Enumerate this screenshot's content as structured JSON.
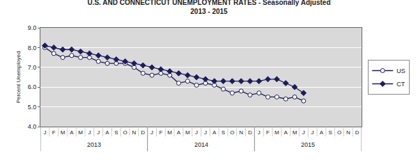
{
  "chart_data": {
    "type": "line",
    "title": "U.S. AND CONNECTICUT UNEMPLOYMENT RATES - Seasonally Adjusted",
    "subtitle": "2013 - 2015",
    "y_label": "Percent Unemployed",
    "categories": [
      "J",
      "F",
      "M",
      "A",
      "M",
      "J",
      "J",
      "A",
      "S",
      "O",
      "N",
      "D",
      "J",
      "F",
      "M",
      "A",
      "M",
      "J",
      "J",
      "A",
      "S",
      "O",
      "N",
      "D",
      "J",
      "F",
      "M",
      "A",
      "M",
      "J",
      "J",
      "A",
      "S",
      "O",
      "N",
      "D"
    ],
    "years": [
      "2013",
      "2014",
      "2015"
    ],
    "series": [
      {
        "name": "US",
        "color": "#1c1c5c",
        "marker": "circle-open",
        "values": [
          8.0,
          7.7,
          7.5,
          7.6,
          7.5,
          7.5,
          7.3,
          7.2,
          7.2,
          7.2,
          7.0,
          6.7,
          6.6,
          6.7,
          6.6,
          6.2,
          6.3,
          6.1,
          6.2,
          6.1,
          5.9,
          5.7,
          5.8,
          5.6,
          5.7,
          5.5,
          5.5,
          5.4,
          5.5,
          5.3,
          null,
          null,
          null,
          null,
          null,
          null
        ]
      },
      {
        "name": "CT",
        "color": "#1c1c5c",
        "marker": "diamond",
        "values": [
          8.1,
          8.0,
          7.9,
          7.9,
          7.8,
          7.7,
          7.6,
          7.5,
          7.4,
          7.3,
          7.2,
          7.1,
          7.0,
          6.9,
          6.8,
          6.7,
          6.6,
          6.5,
          6.4,
          6.3,
          6.3,
          6.3,
          6.3,
          6.3,
          6.3,
          6.4,
          6.4,
          6.2,
          6.0,
          5.7,
          null,
          null,
          null,
          null,
          null,
          null
        ]
      }
    ],
    "ylim": [
      4,
      9
    ],
    "yticks": [
      {
        "value": 4,
        "label": "4.0"
      },
      {
        "value": 5,
        "label": "5.0"
      },
      {
        "value": 6,
        "label": "6.0"
      },
      {
        "value": 7,
        "label": "7.0"
      },
      {
        "value": 8,
        "label": "8.0"
      },
      {
        "value": 9,
        "label": "9.0"
      }
    ],
    "grid": true,
    "legend": "right"
  }
}
